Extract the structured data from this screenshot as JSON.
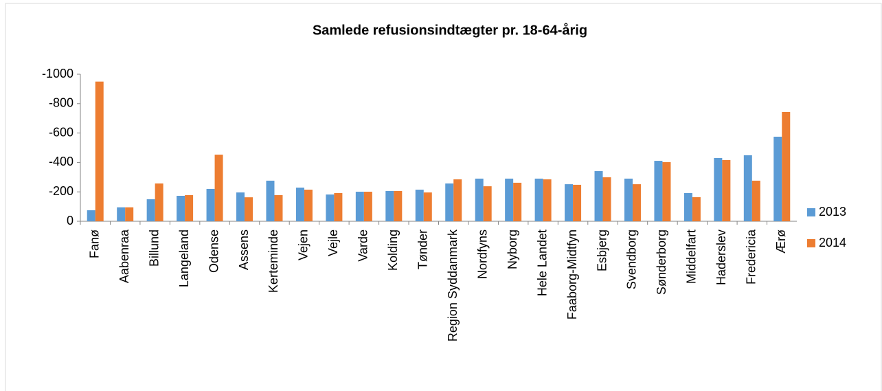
{
  "chart_data": {
    "type": "bar",
    "title": "Samlede refusionsindtægter pr. 18-64-årig",
    "categories": [
      "Fanø",
      "Aabenraa",
      "Billund",
      "Langeland",
      "Odense",
      "Assens",
      "Kerteminde",
      "Vejen",
      "Vejle",
      "Varde",
      "Kolding",
      "Tønder",
      "Region Syddanmark",
      "Nordfyns",
      "Nyborg",
      "Hele Landet",
      "Faaborg-Midtfyn",
      "Esbjerg",
      "Svendborg",
      "Sønderborg",
      "Middelfart",
      "Haderslev",
      "Fredericia",
      "Ærø"
    ],
    "series": [
      {
        "name": "2013",
        "color": "#5b9bd5",
        "values": [
          -75,
          -95,
          -150,
          -173,
          -220,
          -196,
          -276,
          -229,
          -182,
          -201,
          -206,
          -215,
          -257,
          -290,
          -290,
          -290,
          -252,
          -341,
          -290,
          -411,
          -192,
          -430,
          -449,
          -575
        ]
      },
      {
        "name": "2014",
        "color": "#ed7d31",
        "values": [
          -950,
          -95,
          -257,
          -178,
          -453,
          -163,
          -178,
          -215,
          -192,
          -201,
          -206,
          -196,
          -285,
          -238,
          -262,
          -285,
          -248,
          -299,
          -252,
          -402,
          -164,
          -416,
          -276,
          -743
        ]
      }
    ],
    "ylim": [
      0,
      -1000
    ],
    "yticks": [
      0,
      -200,
      -400,
      -600,
      -800,
      -1000
    ],
    "grid": false,
    "legend": "right"
  }
}
